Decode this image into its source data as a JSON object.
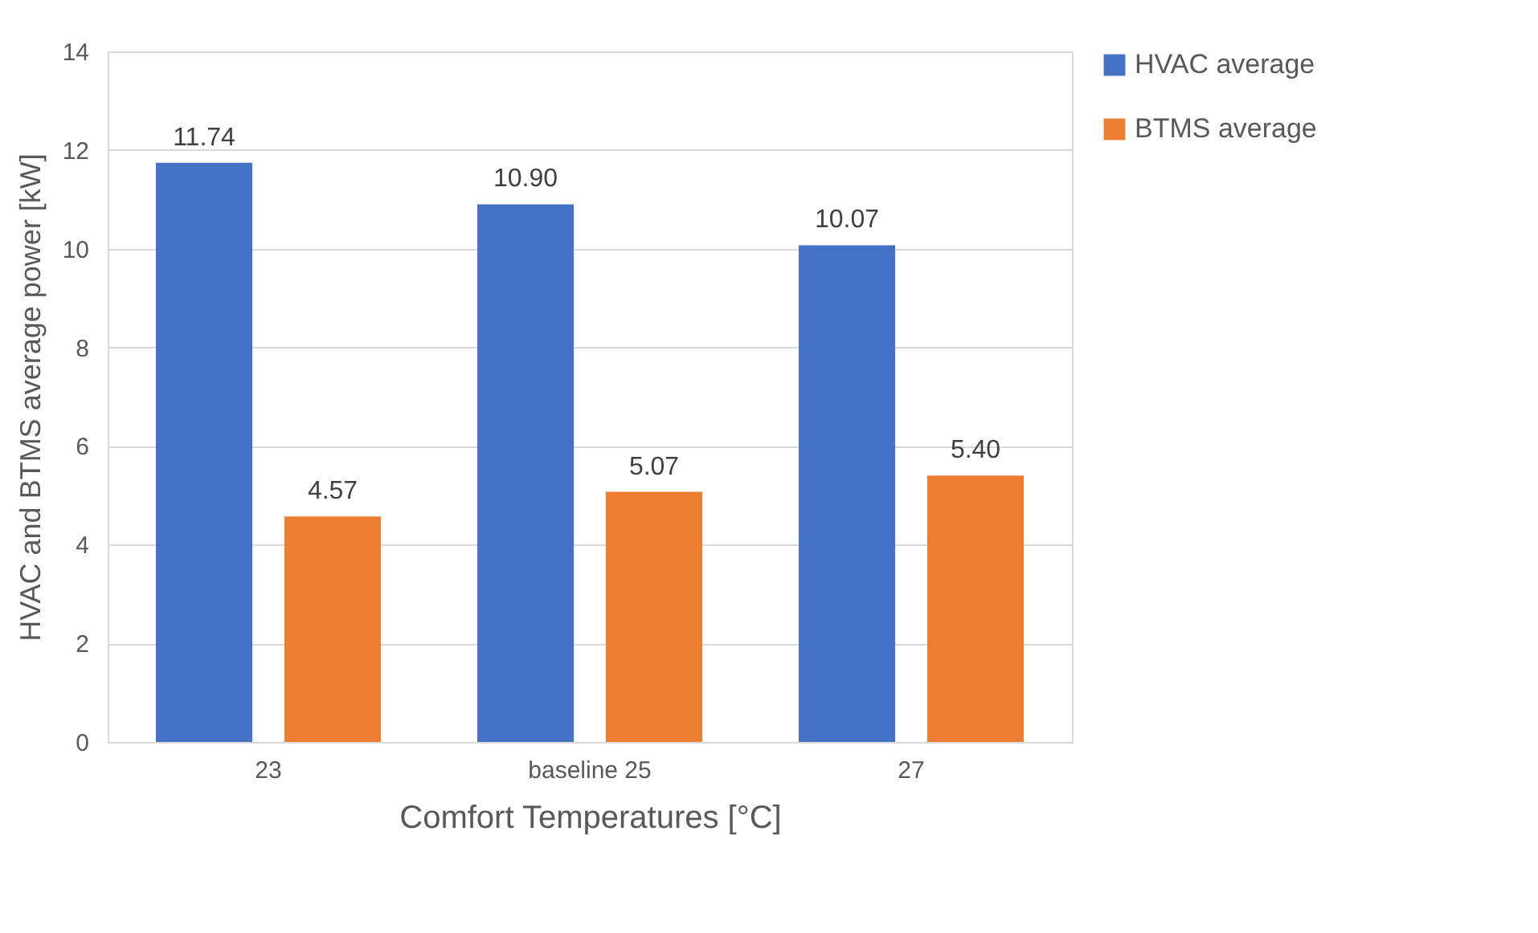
{
  "chart_data": {
    "type": "bar",
    "xlabel": "Comfort Temperatures [°C]",
    "ylabel": "HVAC and BTMS average power [kW]",
    "categories": [
      "23",
      "baseline 25",
      "27"
    ],
    "series": [
      {
        "name": "HVAC average",
        "color": "#4472c4",
        "values": [
          11.74,
          10.9,
          10.07
        ],
        "value_labels": [
          "11.74",
          "10.90",
          "10.07"
        ]
      },
      {
        "name": "BTMS average",
        "color": "#ed7d31",
        "values": [
          4.57,
          5.07,
          5.4
        ],
        "value_labels": [
          "4.57",
          "5.07",
          "5.40"
        ]
      }
    ],
    "ylim": [
      0,
      14
    ],
    "yticks": [
      0,
      2,
      4,
      6,
      8,
      10,
      12,
      14
    ],
    "grid": "y",
    "legend": "right"
  }
}
